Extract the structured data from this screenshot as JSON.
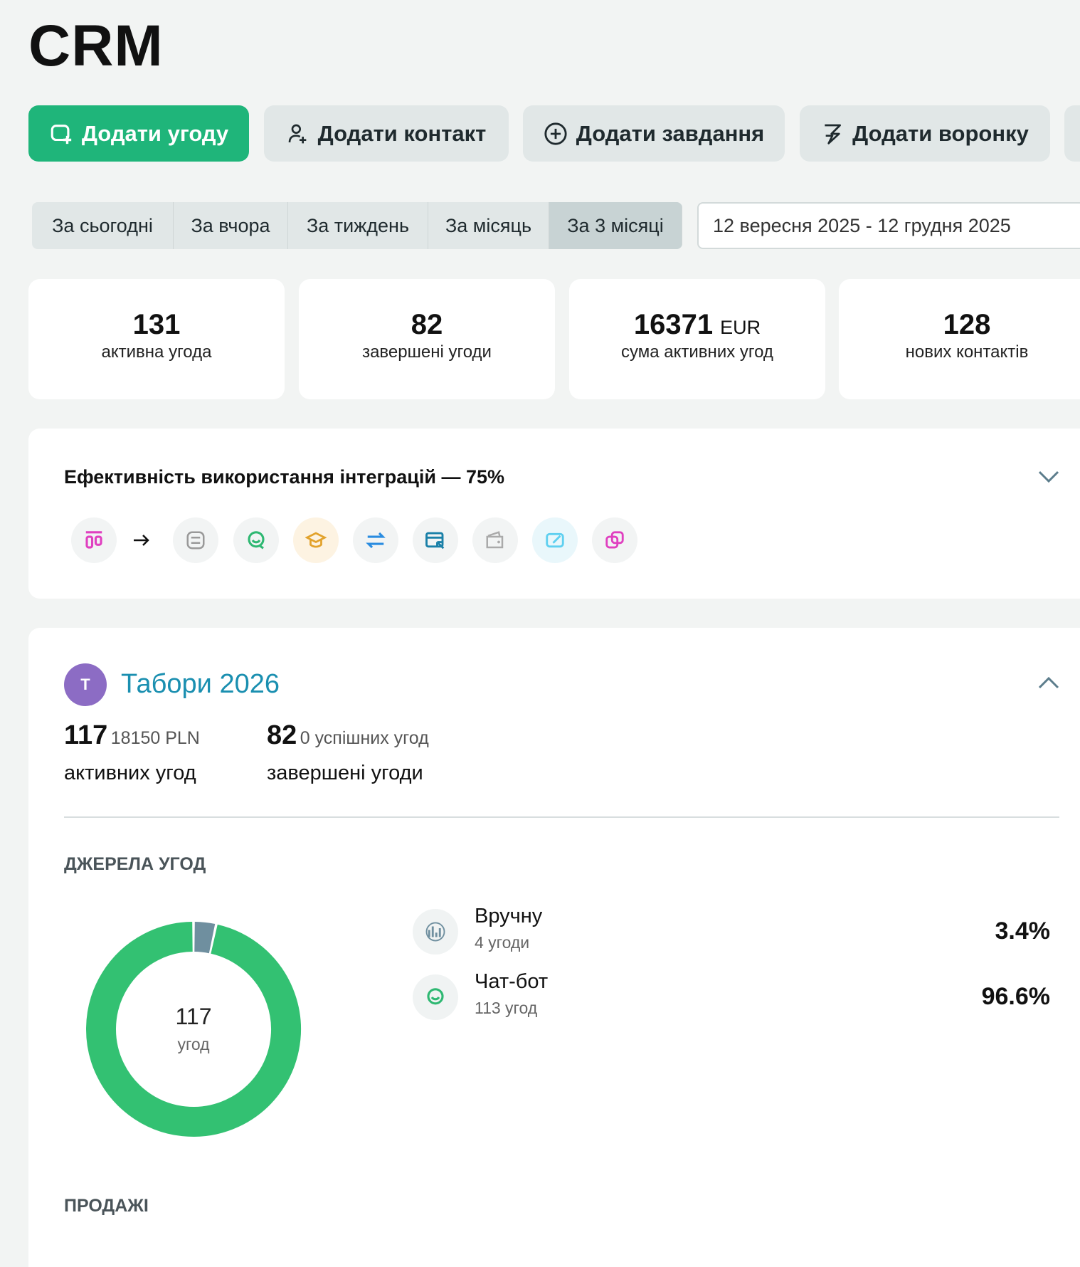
{
  "header": {
    "title": "CRM"
  },
  "actions": [
    "Додати угоду",
    "Додати контакт",
    "Додати завдання",
    "Додати воронку"
  ],
  "periods": {
    "tabs": [
      "За сьогодні",
      "За вчора",
      "За тиждень",
      "За місяць",
      "За 3 місяці"
    ],
    "active": 4,
    "date_range": "12 вересня 2025 - 12 грудня 2025"
  },
  "stats": [
    {
      "value": 131,
      "label": "активна угода"
    },
    {
      "value": 82,
      "label": "завершені угоди"
    },
    {
      "value": 16371,
      "unit": "EUR",
      "label": "сума активних угод"
    },
    {
      "value": 128,
      "label": "нових контактів"
    }
  ],
  "integrations": {
    "title": "Ефективність використання інтеграцій — 75%"
  },
  "pipeline": {
    "avatar": "Т",
    "title": "Табори 2026",
    "active": {
      "count": 117,
      "amount": "18150 PLN",
      "label": "активних угод"
    },
    "closed": {
      "count": 82,
      "note": "0 успішних угод",
      "label": "завершені угоди"
    },
    "sources_title": "ДЖЕРЕЛА УГОД",
    "donut_total": 117,
    "donut_unit": "угод",
    "sources": [
      {
        "name": "Вручну",
        "count": "4 угоди",
        "share": 3.4,
        "share_label": "3.4%",
        "color": "#6f8f9f"
      },
      {
        "name": "Чат-бот",
        "count": "113 угод",
        "share": 96.6,
        "share_label": "96.6%",
        "color": "#33c172"
      }
    ],
    "sales_title": "ПРОДАЖІ"
  }
}
